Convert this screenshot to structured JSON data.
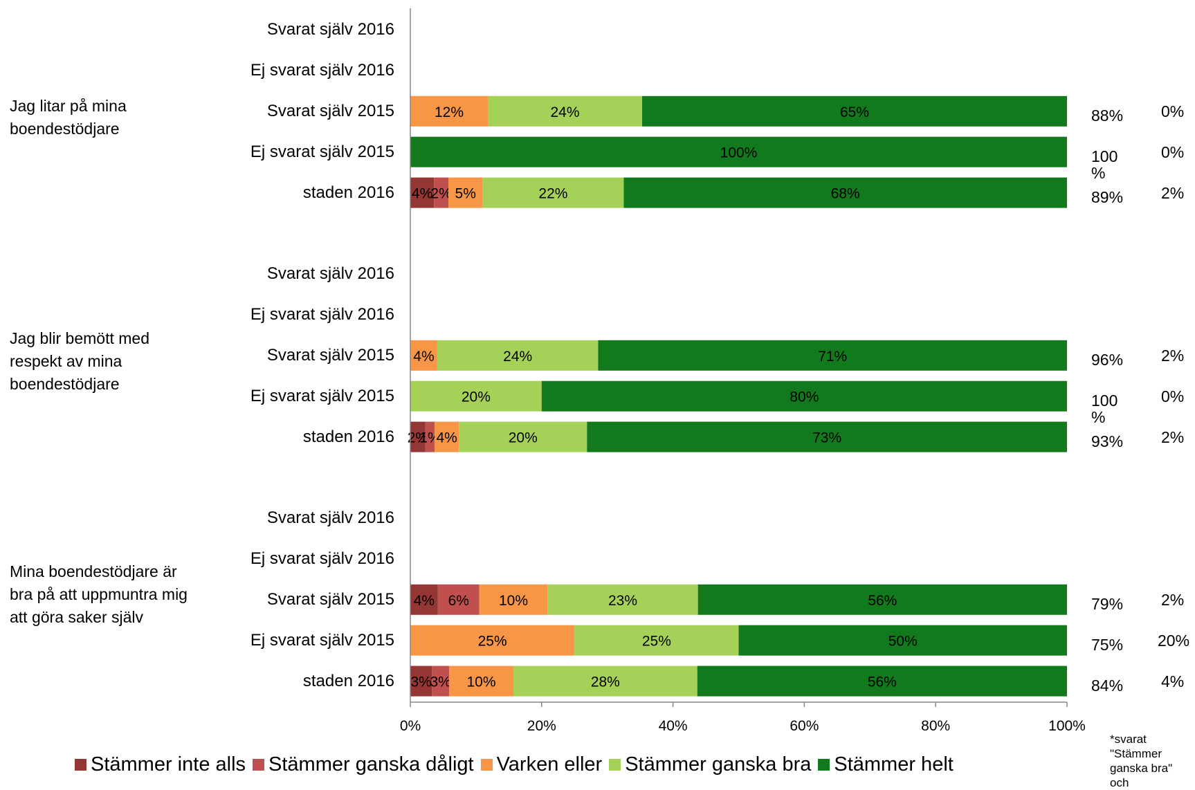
{
  "colors": {
    "inte_alls": "#943634",
    "daligt": "#c0504d",
    "varken": "#f79646",
    "ganska_bra": "#a5d158",
    "helt": "#127a1c",
    "axis": "#868686"
  },
  "chart_data": {
    "type": "bar",
    "orientation": "horizontal",
    "stacked": true,
    "xlim": [
      0,
      100
    ],
    "x_ticks": [
      "0%",
      "20%",
      "40%",
      "60%",
      "80%",
      "100%"
    ],
    "legend_position": "bottom",
    "series": [
      {
        "name": "Stämmer inte alls",
        "color": "#943634"
      },
      {
        "name": "Stämmer ganska dåligt",
        "color": "#c0504d"
      },
      {
        "name": "Varken eller",
        "color": "#f79646"
      },
      {
        "name": "Stämmer ganska bra",
        "color": "#a5d158"
      },
      {
        "name": "Stämmer helt",
        "color": "#127a1c"
      }
    ],
    "groups": [
      {
        "label": "Jag litar på mina boendestödjare",
        "rows": [
          {
            "label": "Svarat själv 2016",
            "values": [
              0,
              0,
              0,
              0,
              0
            ],
            "labels": [
              "",
              "",
              "",
              "",
              ""
            ],
            "side_a": "",
            "side_b": ""
          },
          {
            "label": "Ej svarat själv 2016",
            "values": [
              0,
              0,
              0,
              0,
              0
            ],
            "labels": [
              "",
              "",
              "",
              "",
              ""
            ],
            "side_a": "",
            "side_b": ""
          },
          {
            "label": "Svarat själv 2015",
            "values": [
              0,
              0,
              11.8,
              23.5,
              64.7
            ],
            "labels": [
              "",
              "",
              "12%",
              "24%",
              "65%"
            ],
            "side_a": "88%",
            "side_b": "0%"
          },
          {
            "label": "Ej svarat själv 2015",
            "values": [
              0,
              0,
              0,
              0,
              100
            ],
            "labels": [
              "",
              "",
              "",
              "",
              "100%"
            ],
            "side_a": "100 %",
            "side_b": "0%"
          },
          {
            "label": "staden 2016",
            "values": [
              3.6,
              2.2,
              5.2,
              21.5,
              67.5
            ],
            "labels": [
              "4%",
              "2%",
              "5%",
              "22%",
              "68%"
            ],
            "side_a": "89%",
            "side_b": "2%"
          }
        ]
      },
      {
        "label": "Jag blir bemött med respekt av mina boendestödjare",
        "rows": [
          {
            "label": "Svarat själv 2016",
            "values": [
              0,
              0,
              0,
              0,
              0
            ],
            "labels": [
              "",
              "",
              "",
              "",
              ""
            ],
            "side_a": "",
            "side_b": ""
          },
          {
            "label": "Ej svarat själv 2016",
            "values": [
              0,
              0,
              0,
              0,
              0
            ],
            "labels": [
              "",
              "",
              "",
              "",
              ""
            ],
            "side_a": "",
            "side_b": ""
          },
          {
            "label": "Svarat själv 2015",
            "values": [
              0,
              0,
              4.1,
              24.5,
              71.4
            ],
            "labels": [
              "",
              "",
              "4%",
              "24%",
              "71%"
            ],
            "side_a": "96%",
            "side_b": "2%"
          },
          {
            "label": "Ej svarat själv 2015",
            "values": [
              0,
              0,
              0,
              20,
              80
            ],
            "labels": [
              "",
              "",
              "",
              "20%",
              "80%"
            ],
            "side_a": "100 %",
            "side_b": "0%"
          },
          {
            "label": "staden 2016",
            "values": [
              2.3,
              1.4,
              3.7,
              19.5,
              73.1
            ],
            "labels": [
              "2%",
              "1%",
              "4%",
              "20%",
              "73%"
            ],
            "side_a": "93%",
            "side_b": "2%"
          }
        ]
      },
      {
        "label": "Mina boendestödjare är bra på att uppmuntra mig att göra saker själv",
        "rows": [
          {
            "label": "Svarat själv 2016",
            "values": [
              0,
              0,
              0,
              0,
              0
            ],
            "labels": [
              "",
              "",
              "",
              "",
              ""
            ],
            "side_a": "",
            "side_b": ""
          },
          {
            "label": "Ej svarat själv 2016",
            "values": [
              0,
              0,
              0,
              0,
              0
            ],
            "labels": [
              "",
              "",
              "",
              "",
              ""
            ],
            "side_a": "",
            "side_b": ""
          },
          {
            "label": "Svarat själv 2015",
            "values": [
              4.2,
              6.3,
              10.4,
              22.9,
              56.2
            ],
            "labels": [
              "4%",
              "6%",
              "10%",
              "23%",
              "56%"
            ],
            "side_a": "79%",
            "side_b": "2%"
          },
          {
            "label": "Ej svarat själv 2015",
            "values": [
              0,
              0,
              25,
              25,
              50
            ],
            "labels": [
              "",
              "",
              "25%",
              "25%",
              "50%"
            ],
            "side_a": "75%",
            "side_b": "20%"
          },
          {
            "label": "staden 2016",
            "values": [
              3.3,
              2.6,
              9.8,
              28,
              56.3
            ],
            "labels": [
              "3%",
              "3%",
              "10%",
              "28%",
              "56%"
            ],
            "side_a": "84%",
            "side_b": "4%"
          }
        ]
      }
    ]
  },
  "footnote": "*svarat \"Stämmer ganska bra\" och"
}
